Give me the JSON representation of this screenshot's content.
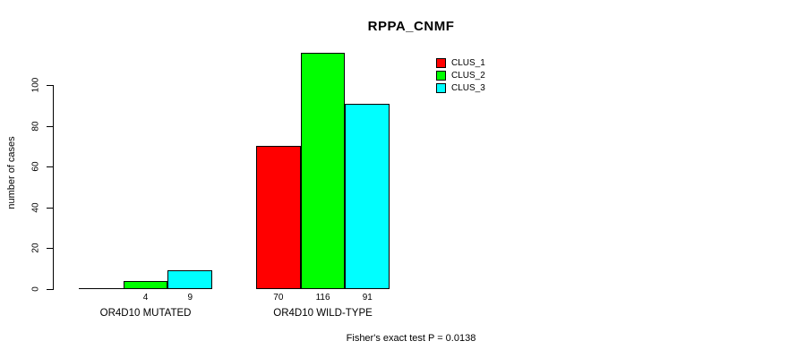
{
  "chart_data": {
    "type": "bar",
    "title": "RPPA_CNMF",
    "ylabel": "number of cases",
    "xlabel": "",
    "ylim": [
      0,
      116
    ],
    "yticks": [
      0,
      20,
      40,
      60,
      80,
      100
    ],
    "grid": false,
    "legend_position": "top-right",
    "background_color": "#ffffff",
    "categories": [
      "OR4D10 MUTATED",
      "OR4D10 WILD-TYPE"
    ],
    "series": [
      {
        "name": "CLUS_1",
        "color": "#ff0000",
        "values": [
          0,
          70
        ]
      },
      {
        "name": "CLUS_2",
        "color": "#00ff00",
        "values": [
          4,
          116
        ]
      },
      {
        "name": "CLUS_3",
        "color": "#00ffff",
        "values": [
          9,
          91
        ]
      }
    ],
    "bar_value_labels": [
      [
        "",
        "4",
        "9"
      ],
      [
        "70",
        "116",
        "91"
      ]
    ],
    "annotation": "Fisher's exact test P = 0.0138"
  }
}
